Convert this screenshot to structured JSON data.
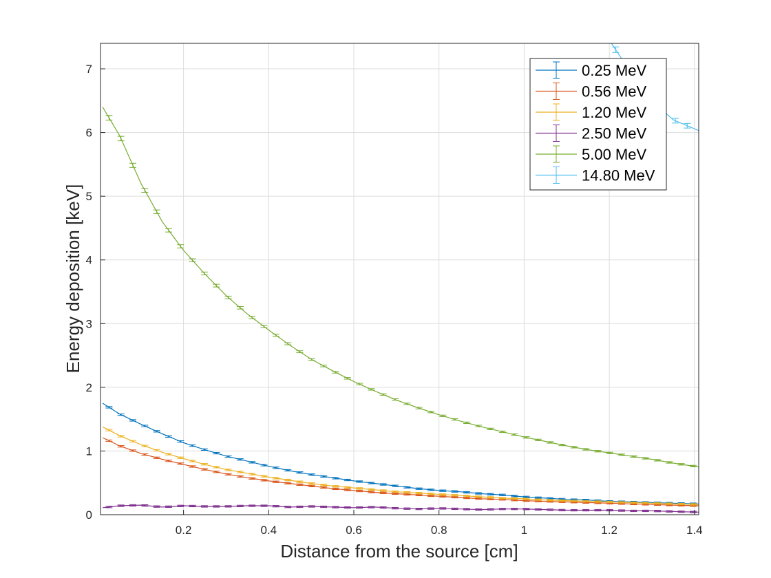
{
  "chart_data": {
    "type": "line",
    "title": "",
    "xlabel": "Distance from the source [cm]",
    "ylabel": "Energy deposition [keV]",
    "xlim": [
      0.005,
      1.41
    ],
    "ylim": [
      0,
      7.4
    ],
    "xticks": [
      0.2,
      0.4,
      0.6,
      0.8,
      1,
      1.2,
      1.4
    ],
    "yticks": [
      0,
      1,
      2,
      3,
      4,
      5,
      6,
      7
    ],
    "grid": true,
    "legend_position": "top-right",
    "error_bars": true,
    "series": [
      {
        "name": "0.25 MeV",
        "color": "#0072BD",
        "x": [
          0.01,
          0.05,
          0.1,
          0.15,
          0.2,
          0.25,
          0.3,
          0.35,
          0.4,
          0.45,
          0.5,
          0.55,
          0.6,
          0.65,
          0.7,
          0.75,
          0.8,
          0.85,
          0.9,
          0.95,
          1.0,
          1.05,
          1.1,
          1.15,
          1.2,
          1.25,
          1.3,
          1.35,
          1.41
        ],
        "y": [
          1.75,
          1.58,
          1.42,
          1.27,
          1.13,
          1.02,
          0.92,
          0.84,
          0.76,
          0.69,
          0.63,
          0.58,
          0.53,
          0.49,
          0.45,
          0.41,
          0.38,
          0.36,
          0.33,
          0.31,
          0.28,
          0.26,
          0.24,
          0.23,
          0.21,
          0.2,
          0.19,
          0.18,
          0.17
        ]
      },
      {
        "name": "0.56 MeV",
        "color": "#D95319",
        "x": [
          0.01,
          0.05,
          0.1,
          0.15,
          0.2,
          0.25,
          0.3,
          0.35,
          0.4,
          0.45,
          0.5,
          0.55,
          0.6,
          0.65,
          0.7,
          0.75,
          0.8,
          0.85,
          0.9,
          0.95,
          1.0,
          1.05,
          1.1,
          1.15,
          1.2,
          1.25,
          1.3,
          1.35,
          1.41
        ],
        "y": [
          1.21,
          1.08,
          0.96,
          0.87,
          0.79,
          0.71,
          0.64,
          0.58,
          0.53,
          0.49,
          0.45,
          0.41,
          0.38,
          0.35,
          0.33,
          0.31,
          0.29,
          0.27,
          0.25,
          0.24,
          0.22,
          0.21,
          0.2,
          0.19,
          0.18,
          0.17,
          0.16,
          0.15,
          0.14
        ]
      },
      {
        "name": "1.20 MeV",
        "color": "#EDB120",
        "x": [
          0.01,
          0.05,
          0.1,
          0.15,
          0.2,
          0.25,
          0.3,
          0.35,
          0.4,
          0.45,
          0.5,
          0.55,
          0.6,
          0.65,
          0.7,
          0.75,
          0.8,
          0.85,
          0.9,
          0.95,
          1.0,
          1.05,
          1.1,
          1.15,
          1.2,
          1.25,
          1.3,
          1.35,
          1.41
        ],
        "y": [
          1.38,
          1.24,
          1.1,
          0.98,
          0.88,
          0.79,
          0.71,
          0.65,
          0.59,
          0.54,
          0.49,
          0.45,
          0.42,
          0.39,
          0.36,
          0.34,
          0.32,
          0.3,
          0.28,
          0.26,
          0.25,
          0.23,
          0.22,
          0.21,
          0.2,
          0.19,
          0.18,
          0.17,
          0.16
        ]
      },
      {
        "name": "2.50 MeV",
        "color": "#7E2F8E",
        "x": [
          0.01,
          0.05,
          0.1,
          0.15,
          0.2,
          0.25,
          0.3,
          0.35,
          0.4,
          0.45,
          0.5,
          0.55,
          0.6,
          0.65,
          0.7,
          0.75,
          0.8,
          0.85,
          0.9,
          0.95,
          1.0,
          1.05,
          1.1,
          1.15,
          1.2,
          1.25,
          1.3,
          1.35,
          1.41
        ],
        "y": [
          0.11,
          0.14,
          0.15,
          0.12,
          0.14,
          0.13,
          0.13,
          0.14,
          0.14,
          0.12,
          0.13,
          0.12,
          0.11,
          0.12,
          0.1,
          0.09,
          0.1,
          0.09,
          0.08,
          0.09,
          0.09,
          0.08,
          0.07,
          0.07,
          0.07,
          0.06,
          0.06,
          0.05,
          0.04
        ]
      },
      {
        "name": "5.00 MeV",
        "color": "#77AC30",
        "x": [
          0.01,
          0.05,
          0.1,
          0.15,
          0.2,
          0.25,
          0.3,
          0.35,
          0.4,
          0.45,
          0.5,
          0.55,
          0.6,
          0.65,
          0.7,
          0.75,
          0.8,
          0.85,
          0.9,
          0.95,
          1.0,
          1.05,
          1.1,
          1.15,
          1.2,
          1.25,
          1.3,
          1.35,
          1.41
        ],
        "y": [
          6.4,
          5.95,
          5.2,
          4.6,
          4.15,
          3.78,
          3.44,
          3.15,
          2.9,
          2.66,
          2.44,
          2.26,
          2.09,
          1.94,
          1.8,
          1.68,
          1.57,
          1.47,
          1.38,
          1.3,
          1.22,
          1.15,
          1.08,
          1.02,
          0.97,
          0.92,
          0.87,
          0.81,
          0.75
        ]
      },
      {
        "name": "14.80 MeV",
        "color": "#4DBEEE",
        "x": [
          1.2,
          1.25,
          1.3,
          1.35,
          1.41
        ],
        "y": [
          7.45,
          6.95,
          6.5,
          6.2,
          6.03
        ]
      }
    ]
  }
}
